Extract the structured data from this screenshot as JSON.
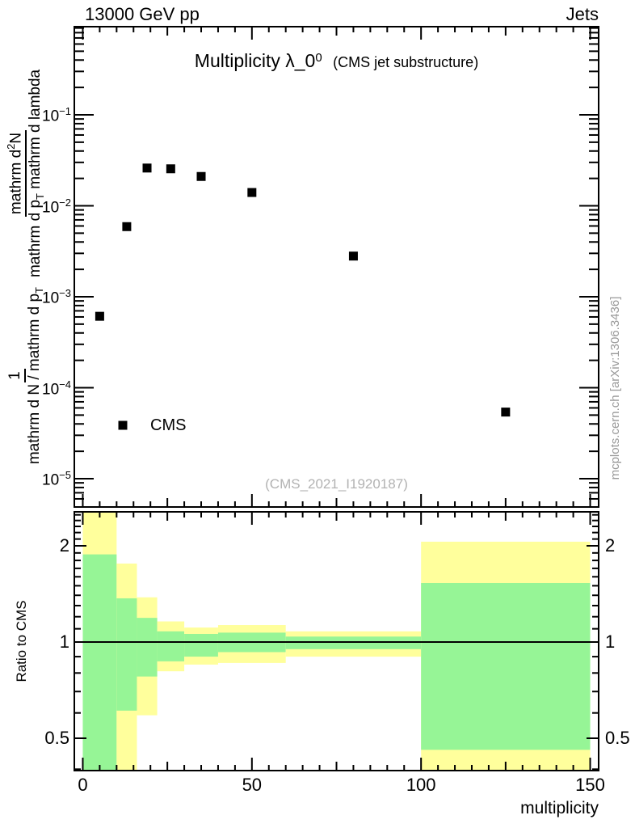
{
  "header": {
    "left_label": "13000 GeV pp",
    "right_label": "Jets"
  },
  "plot_title": {
    "main": "Multiplicity λ_0",
    "main_sup": "0",
    "paren": "(CMS jet substructure)"
  },
  "y_axis_label": {
    "frac1_num": "1",
    "frac1_den_pre": "mathrm d N / mathrm d p",
    "frac1_den_sub": "T",
    "frac2_num_pre": "mathrm d",
    "frac2_num_sup": "2",
    "frac2_num_post": "N",
    "frac2_den_pre": "mathrm d p",
    "frac2_den_sub": "T",
    "frac2_den_post": " mathrm d lambda"
  },
  "legend": {
    "label": "CMS",
    "marker": "filled-black-square"
  },
  "watermark": "(CMS_2021_I1920187)",
  "side_note": "mcplots.cern.ch [arXiv:1306.3436]",
  "ratio_axis_label": "Ratio to CMS",
  "x_axis_label": "multiplicity",
  "colors": {
    "band_yellow": "#ffff9c",
    "band_green": "#96f596",
    "marker": "#000000",
    "frame": "#000000",
    "watermark_gray": "#b2b2b2",
    "side_note_gray": "#999999"
  },
  "main_y_ticks": [
    {
      "base": "10",
      "exp": "−1",
      "value": 0.1
    },
    {
      "base": "10",
      "exp": "−2",
      "value": 0.01
    },
    {
      "base": "10",
      "exp": "−3",
      "value": 0.001
    },
    {
      "base": "10",
      "exp": "−4",
      "value": 0.0001
    },
    {
      "base": "10",
      "exp": "−5",
      "value": 1e-05
    }
  ],
  "ratio_y_ticks": [
    {
      "label": "2",
      "value": 2
    },
    {
      "label": "1",
      "value": 1
    },
    {
      "label": "0.5",
      "value": 0.5
    }
  ],
  "x_ticks": [
    {
      "label": "0",
      "value": 0
    },
    {
      "label": "50",
      "value": 50
    },
    {
      "label": "100",
      "value": 100
    },
    {
      "label": "150",
      "value": 150
    }
  ],
  "chart_data": {
    "type": "scatter",
    "title": "Multiplicity λ_0^0 (CMS jet substructure)",
    "xlabel": "multiplicity",
    "ylabel": "1/(dN/dp_T) d^2N/(dp_T dlambda)",
    "x_range": [
      -2.5,
      152.5
    ],
    "x_minor_tick_step": 5,
    "top_panel": {
      "y_scale": "log",
      "y_range": [
        5e-06,
        0.93
      ],
      "grid": false,
      "legend_position": "left-middle",
      "series": [
        {
          "name": "CMS",
          "marker": "filled-square",
          "color": "#000000",
          "points": [
            [
              5,
              0.00061
            ],
            [
              13,
              0.0059
            ],
            [
              19,
              0.026
            ],
            [
              26,
              0.0255
            ],
            [
              35,
              0.021
            ],
            [
              50,
              0.014
            ],
            [
              80,
              0.0028
            ],
            [
              125,
              5.4e-05
            ]
          ]
        }
      ]
    },
    "ratio_panel": {
      "y_scale": "log",
      "y_range": [
        0.396,
        2.56
      ],
      "ylabel": "Ratio to CMS",
      "reference_line": 1.0,
      "bands": [
        {
          "x": [
            0,
            10
          ],
          "yellow": [
            0.39,
            2.56
          ],
          "green": [
            0.39,
            1.88
          ]
        },
        {
          "x": [
            10,
            16
          ],
          "yellow": [
            0.39,
            1.76
          ],
          "green": [
            0.61,
            1.37
          ]
        },
        {
          "x": [
            16,
            22
          ],
          "yellow": [
            0.59,
            1.38
          ],
          "green": [
            0.78,
            1.19
          ]
        },
        {
          "x": [
            22,
            30
          ],
          "yellow": [
            0.81,
            1.16
          ],
          "green": [
            0.87,
            1.08
          ]
        },
        {
          "x": [
            30,
            40
          ],
          "yellow": [
            0.85,
            1.11
          ],
          "green": [
            0.9,
            1.06
          ]
        },
        {
          "x": [
            40,
            60
          ],
          "yellow": [
            0.86,
            1.13
          ],
          "green": [
            0.93,
            1.07
          ]
        },
        {
          "x": [
            60,
            100
          ],
          "yellow": [
            0.9,
            1.08
          ],
          "green": [
            0.95,
            1.04
          ]
        },
        {
          "x": [
            100,
            150
          ],
          "yellow": [
            0.39,
            2.06
          ],
          "green": [
            0.46,
            1.53
          ]
        }
      ]
    }
  }
}
